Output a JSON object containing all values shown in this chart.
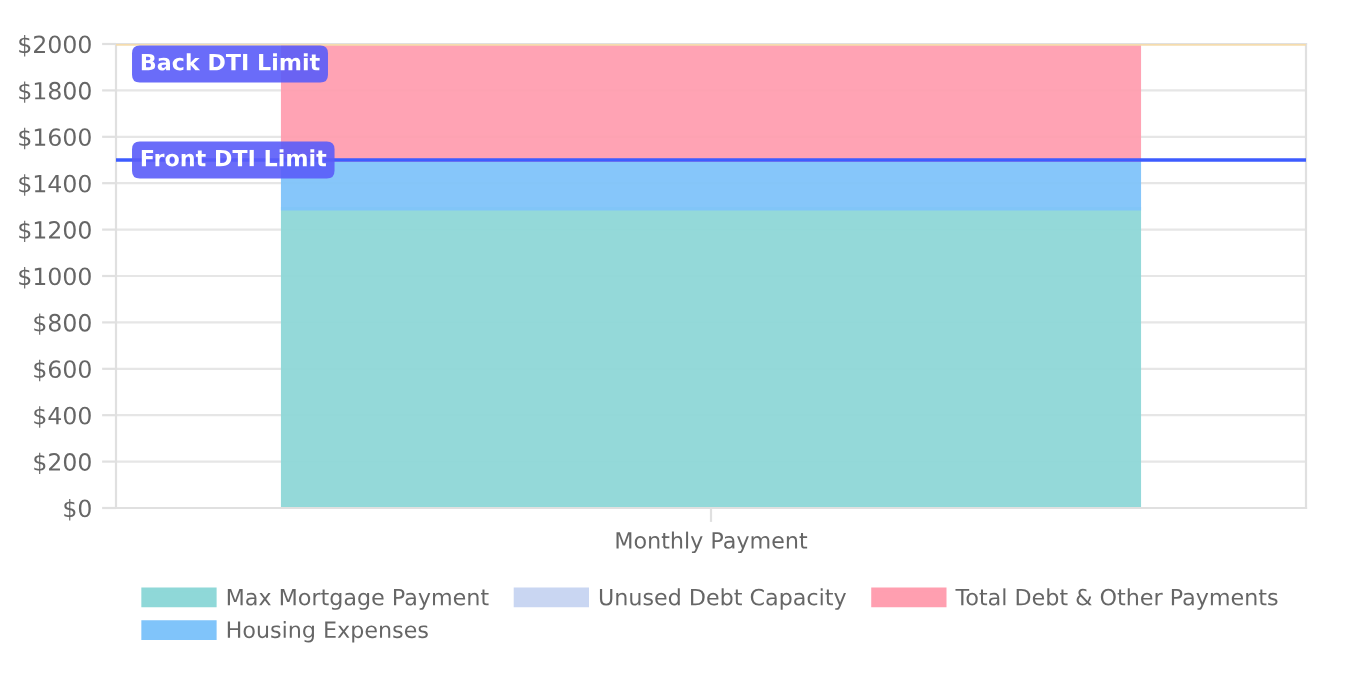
{
  "chart_data": {
    "type": "bar",
    "stacked": true,
    "categories": [
      "Monthly Payment"
    ],
    "series": [
      {
        "name": "Max Mortgage Payment",
        "color": "#8fd8d8",
        "values": [
          1290
        ]
      },
      {
        "name": "Housing Expenses",
        "color": "#80c4fa",
        "values": [
          210
        ]
      },
      {
        "name": "Unused Debt Capacity",
        "color": "#c9d6f2",
        "values": [
          0
        ]
      },
      {
        "name": "Total Debt & Other Payments",
        "color": "#ff9fb0",
        "values": [
          500
        ]
      }
    ],
    "ylim": [
      0,
      2000
    ],
    "yticks": [
      {
        "value": 0,
        "label": "$0"
      },
      {
        "value": 200,
        "label": "$200"
      },
      {
        "value": 400,
        "label": "$400"
      },
      {
        "value": 600,
        "label": "$600"
      },
      {
        "value": 800,
        "label": "$800"
      },
      {
        "value": 1000,
        "label": "$1000"
      },
      {
        "value": 1200,
        "label": "$1200"
      },
      {
        "value": 1400,
        "label": "$1400"
      },
      {
        "value": 1600,
        "label": "$1600"
      },
      {
        "value": 1800,
        "label": "$1800"
      },
      {
        "value": 2000,
        "label": "$2000"
      }
    ],
    "ref_lines": [
      {
        "axis": "y",
        "value": 2000,
        "label": "Back DTI Limit",
        "color": "#f5dcae"
      },
      {
        "axis": "y",
        "value": 1500,
        "label": "Front DTI Limit",
        "color": "#3d5cff"
      }
    ],
    "grid": "y",
    "legend": "bottom"
  }
}
